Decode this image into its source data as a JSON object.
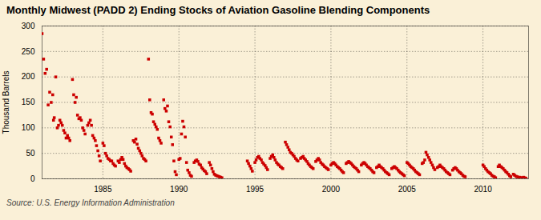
{
  "chart_data": {
    "type": "scatter",
    "title": "Monthly Midwest (PADD 2) Ending Stocks of Aviation Gasoline Blending Components",
    "ylabel": "Thousand Barrels",
    "caption": "Source: U.S. Energy Information Administration",
    "color": "#CC0000",
    "marker": "square",
    "grid": true,
    "xlim": [
      1981.0,
      2013.0
    ],
    "ylim": [
      0,
      300
    ],
    "xticks": [
      1985,
      1990,
      1995,
      2000,
      2005,
      2010
    ],
    "yticks": [
      0,
      50,
      100,
      150,
      200,
      250,
      300
    ],
    "x": [
      1981.0,
      1981.1,
      1981.2,
      1981.3,
      1981.4,
      1981.5,
      1981.6,
      1981.7,
      1981.8,
      1981.9,
      1981.75,
      1982.0,
      1982.08,
      1982.17,
      1982.25,
      1982.33,
      1982.42,
      1982.5,
      1982.58,
      1982.67,
      1982.75,
      1982.83,
      1983.0,
      1983.08,
      1983.17,
      1983.25,
      1983.33,
      1983.42,
      1983.5,
      1983.58,
      1983.67,
      1983.75,
      1983.83,
      1984.0,
      1984.08,
      1984.17,
      1984.25,
      1984.33,
      1984.42,
      1984.5,
      1984.58,
      1984.67,
      1984.75,
      1984.83,
      1985.0,
      1985.08,
      1985.17,
      1985.25,
      1985.33,
      1985.42,
      1985.5,
      1985.58,
      1985.67,
      1985.75,
      1985.83,
      1986.0,
      1986.08,
      1986.17,
      1986.25,
      1986.33,
      1986.42,
      1986.5,
      1986.58,
      1986.67,
      1986.75,
      1986.83,
      1987.0,
      1987.08,
      1987.17,
      1987.25,
      1987.33,
      1987.42,
      1987.5,
      1987.58,
      1987.67,
      1987.75,
      1987.83,
      1988.0,
      1988.08,
      1988.17,
      1988.25,
      1988.33,
      1988.42,
      1988.5,
      1988.58,
      1988.67,
      1988.75,
      1988.83,
      1989.0,
      1989.08,
      1989.17,
      1989.25,
      1989.33,
      1989.42,
      1989.5,
      1989.58,
      1989.67,
      1989.75,
      1989.83,
      1990.0,
      1990.08,
      1990.17,
      1990.25,
      1990.33,
      1990.42,
      1990.5,
      1990.58,
      1990.67,
      1990.75,
      1990.83,
      1991.0,
      1991.08,
      1991.17,
      1991.25,
      1991.33,
      1991.42,
      1991.5,
      1991.58,
      1991.67,
      1991.75,
      1991.83,
      1992.0,
      1992.08,
      1992.17,
      1992.25,
      1992.33,
      1992.42,
      1992.5,
      1992.58,
      1992.67,
      1992.75,
      1992.83,
      1994.5,
      1994.58,
      1994.67,
      1994.75,
      1994.83,
      1995.0,
      1995.08,
      1995.17,
      1995.25,
      1995.33,
      1995.42,
      1995.5,
      1995.58,
      1995.67,
      1995.75,
      1995.83,
      1996.0,
      1996.08,
      1996.17,
      1996.25,
      1996.33,
      1996.42,
      1996.5,
      1996.58,
      1996.67,
      1996.75,
      1996.83,
      1997.0,
      1997.08,
      1997.17,
      1997.25,
      1997.33,
      1997.42,
      1997.5,
      1997.58,
      1997.67,
      1997.75,
      1997.83,
      1998.0,
      1998.08,
      1998.17,
      1998.25,
      1998.33,
      1998.42,
      1998.5,
      1998.58,
      1998.67,
      1998.75,
      1998.83,
      1999.0,
      1999.08,
      1999.17,
      1999.25,
      1999.33,
      1999.42,
      1999.5,
      1999.58,
      1999.67,
      1999.75,
      1999.83,
      2000.0,
      2000.08,
      2000.17,
      2000.25,
      2000.33,
      2000.42,
      2000.5,
      2000.58,
      2000.67,
      2000.75,
      2000.83,
      2001.0,
      2001.08,
      2001.17,
      2001.25,
      2001.33,
      2001.42,
      2001.5,
      2001.58,
      2001.67,
      2001.75,
      2001.83,
      2002.0,
      2002.08,
      2002.17,
      2002.25,
      2002.33,
      2002.42,
      2002.5,
      2002.58,
      2002.67,
      2002.75,
      2002.83,
      2003.0,
      2003.08,
      2003.17,
      2003.25,
      2003.33,
      2003.42,
      2003.5,
      2003.58,
      2003.67,
      2003.75,
      2003.83,
      2004.0,
      2004.08,
      2004.17,
      2004.25,
      2004.33,
      2004.42,
      2004.5,
      2004.58,
      2004.67,
      2004.75,
      2004.83,
      2005.0,
      2005.08,
      2005.17,
      2005.25,
      2005.33,
      2005.42,
      2005.5,
      2005.58,
      2005.67,
      2005.75,
      2005.83,
      2006.0,
      2006.08,
      2006.17,
      2006.25,
      2006.33,
      2006.42,
      2006.5,
      2006.58,
      2006.67,
      2006.75,
      2006.83,
      2007.0,
      2007.08,
      2007.17,
      2007.25,
      2007.33,
      2007.42,
      2007.5,
      2007.58,
      2007.67,
      2007.75,
      2007.83,
      2008.0,
      2008.08,
      2008.17,
      2008.25,
      2008.33,
      2008.42,
      2008.5,
      2008.58,
      2008.67,
      2008.75,
      2008.83,
      2010.0,
      2010.08,
      2010.17,
      2010.25,
      2010.33,
      2010.42,
      2010.5,
      2010.58,
      2010.67,
      2010.75,
      2010.83,
      2011.0,
      2011.08,
      2011.17,
      2011.25,
      2011.33,
      2011.42,
      2011.5,
      2011.58,
      2011.67,
      2011.75,
      2011.83,
      2012.0,
      2012.08,
      2012.17,
      2012.25,
      2012.33,
      2012.42,
      2012.5,
      2012.58,
      2012.67,
      2012.75,
      2012.83
    ],
    "values": [
      285,
      235,
      207,
      215,
      145,
      170,
      150,
      165,
      120,
      200,
      115,
      100,
      105,
      115,
      110,
      105,
      95,
      90,
      80,
      85,
      80,
      75,
      195,
      165,
      150,
      160,
      125,
      118,
      120,
      115,
      100,
      95,
      88,
      105,
      110,
      115,
      105,
      85,
      80,
      75,
      65,
      55,
      45,
      35,
      70,
      65,
      50,
      45,
      40,
      38,
      35,
      35,
      30,
      27,
      25,
      35,
      32,
      38,
      42,
      38,
      30,
      25,
      22,
      20,
      18,
      15,
      75,
      72,
      78,
      68,
      60,
      55,
      50,
      45,
      40,
      38,
      35,
      235,
      155,
      130,
      127,
      112,
      107,
      102,
      97,
      80,
      75,
      70,
      155,
      138,
      133,
      143,
      112,
      102,
      82,
      67,
      35,
      14,
      8,
      38,
      40,
      88,
      113,
      102,
      82,
      32,
      17,
      12,
      7,
      5,
      32,
      35,
      37,
      34,
      29,
      27,
      22,
      19,
      16,
      14,
      10,
      32,
      27,
      20,
      14,
      9,
      7,
      6,
      5,
      4,
      3,
      2,
      35,
      30,
      25,
      20,
      15,
      32,
      37,
      42,
      44,
      40,
      37,
      32,
      29,
      26,
      22,
      18,
      40,
      44,
      47,
      42,
      37,
      32,
      29,
      27,
      24,
      22,
      20,
      72,
      67,
      62,
      57,
      52,
      50,
      47,
      44,
      40,
      37,
      35,
      40,
      42,
      44,
      40,
      37,
      34,
      30,
      27,
      24,
      22,
      20,
      34,
      37,
      40,
      37,
      32,
      29,
      27,
      24,
      22,
      20,
      18,
      27,
      30,
      32,
      30,
      27,
      24,
      22,
      20,
      17,
      14,
      12,
      30,
      32,
      34,
      32,
      30,
      27,
      24,
      22,
      20,
      17,
      14,
      27,
      30,
      32,
      30,
      27,
      24,
      22,
      20,
      17,
      14,
      12,
      22,
      24,
      27,
      24,
      22,
      20,
      17,
      14,
      12,
      10,
      8,
      20,
      22,
      24,
      22,
      20,
      17,
      14,
      12,
      10,
      8,
      6,
      32,
      30,
      27,
      24,
      22,
      20,
      17,
      14,
      12,
      10,
      8,
      30,
      32,
      37,
      52,
      47,
      42,
      37,
      32,
      27,
      22,
      18,
      22,
      24,
      27,
      24,
      22,
      20,
      17,
      14,
      12,
      10,
      8,
      17,
      20,
      22,
      20,
      17,
      14,
      12,
      10,
      7,
      5,
      4,
      27,
      24,
      20,
      17,
      14,
      12,
      10,
      7,
      5,
      4,
      2,
      24,
      27,
      24,
      22,
      20,
      17,
      14,
      12,
      9,
      6,
      4,
      9,
      7,
      5,
      4,
      3,
      3,
      2,
      2,
      3,
      2,
      1
    ]
  }
}
